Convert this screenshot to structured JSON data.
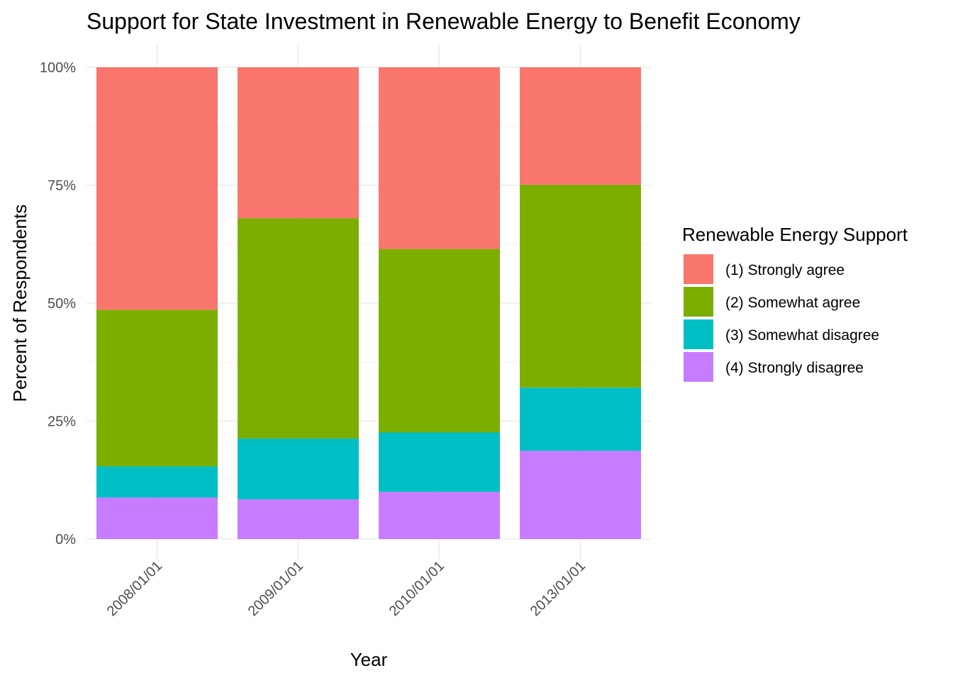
{
  "chart_data": {
    "type": "bar",
    "stacked": "percent",
    "title": "Support for State Investment in Renewable Energy to Benefit Economy",
    "xlabel": "Year",
    "ylabel": "Percent of Respondents",
    "ylim": [
      0,
      100
    ],
    "y_ticks": [
      "0%",
      "25%",
      "50%",
      "75%",
      "100%"
    ],
    "y_tick_values": [
      0,
      25,
      50,
      75,
      100
    ],
    "categories": [
      "2008/01/01",
      "2009/01/01",
      "2010/01/01",
      "2013/01/01"
    ],
    "grid": true,
    "legend": {
      "title": "Renewable Energy Support",
      "position": "right"
    },
    "series": [
      {
        "name": "(4) Strongly disagree",
        "color": "#C77CFF",
        "values": [
          8.8,
          8.4,
          10.0,
          18.7
        ]
      },
      {
        "name": "(3) Somewhat disagree",
        "color": "#00BFC4",
        "values": [
          6.6,
          12.9,
          12.6,
          13.4
        ]
      },
      {
        "name": "(2) Somewhat agree",
        "color": "#7CAE00",
        "values": [
          33.2,
          46.7,
          38.9,
          43.0
        ]
      },
      {
        "name": "(1) Strongly agree",
        "color": "#F8766D",
        "values": [
          51.4,
          32.0,
          38.5,
          24.9
        ]
      }
    ]
  }
}
